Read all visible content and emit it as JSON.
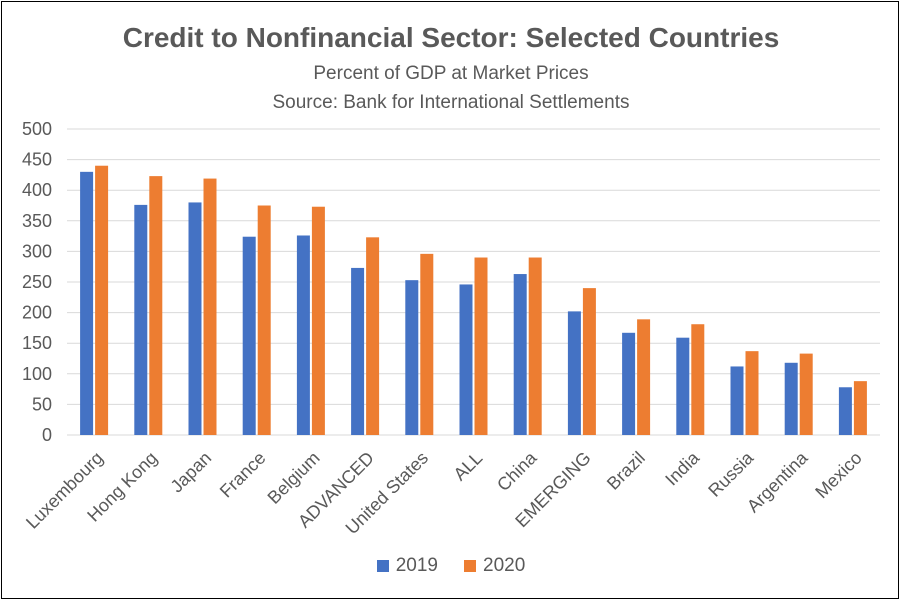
{
  "chart_data": {
    "type": "bar",
    "title": "Credit to Nonfinancial Sector:  Selected Countries",
    "subtitle": "Percent of GDP at Market Prices",
    "source": "Source:  Bank for International Settlements",
    "categories": [
      "Luxembourg",
      "Hong Kong",
      "Japan",
      "France",
      "Belgium",
      "ADVANCED",
      "United States",
      "ALL",
      "China",
      "EMERGING",
      "Brazil",
      "India",
      "Russia",
      "Argentina",
      "Mexico"
    ],
    "series": [
      {
        "name": "2019",
        "color": "#4472C4",
        "values": [
          430,
          376,
          380,
          324,
          326,
          273,
          253,
          246,
          263,
          202,
          167,
          159,
          112,
          118,
          78
        ]
      },
      {
        "name": "2020",
        "color": "#ED7D31",
        "values": [
          440,
          423,
          419,
          375,
          373,
          323,
          296,
          290,
          290,
          240,
          189,
          181,
          137,
          133,
          88
        ]
      }
    ],
    "ylim": [
      0,
      500
    ],
    "yticks": [
      "0",
      "50",
      "100",
      "150",
      "200",
      "250",
      "300",
      "350",
      "400",
      "450",
      "500"
    ],
    "grid": true,
    "legend_position": "bottom"
  }
}
